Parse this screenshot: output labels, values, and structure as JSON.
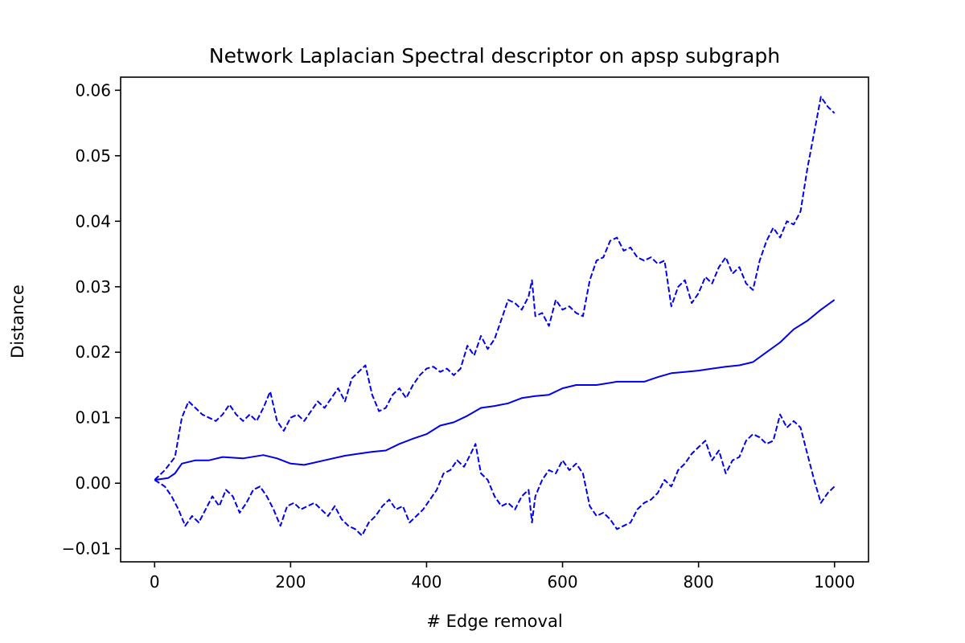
{
  "chart_data": {
    "type": "line",
    "title": "Network Laplacian Spectral descriptor on apsp subgraph",
    "xlabel": "# Edge removal",
    "ylabel": "Distance",
    "xlim": [
      -50,
      1050
    ],
    "ylim": [
      -0.012,
      0.062
    ],
    "xticks": [
      0,
      200,
      400,
      600,
      800,
      1000
    ],
    "xtick_labels": [
      "0",
      "200",
      "400",
      "600",
      "800",
      "1000"
    ],
    "yticks": [
      -0.01,
      0.0,
      0.01,
      0.02,
      0.03,
      0.04,
      0.05,
      0.06
    ],
    "ytick_labels": [
      "−0.01",
      "0.00",
      "0.01",
      "0.02",
      "0.03",
      "0.04",
      "0.05",
      "0.06"
    ],
    "grid": false,
    "legend": "none",
    "color": "#0000ee",
    "series": [
      {
        "style": "solid",
        "points": [
          [
            0,
            0.0005
          ],
          [
            20,
            0.0008
          ],
          [
            30,
            0.0015
          ],
          [
            40,
            0.003
          ],
          [
            60,
            0.0035
          ],
          [
            80,
            0.0035
          ],
          [
            100,
            0.004
          ],
          [
            130,
            0.0038
          ],
          [
            160,
            0.0043
          ],
          [
            180,
            0.0038
          ],
          [
            200,
            0.003
          ],
          [
            220,
            0.0028
          ],
          [
            250,
            0.0035
          ],
          [
            280,
            0.0042
          ],
          [
            300,
            0.0045
          ],
          [
            320,
            0.0048
          ],
          [
            340,
            0.005
          ],
          [
            360,
            0.006
          ],
          [
            380,
            0.0068
          ],
          [
            400,
            0.0075
          ],
          [
            420,
            0.0088
          ],
          [
            440,
            0.0093
          ],
          [
            460,
            0.0103
          ],
          [
            480,
            0.0115
          ],
          [
            500,
            0.0118
          ],
          [
            520,
            0.0122
          ],
          [
            540,
            0.013
          ],
          [
            560,
            0.0133
          ],
          [
            580,
            0.0135
          ],
          [
            600,
            0.0145
          ],
          [
            620,
            0.015
          ],
          [
            650,
            0.015
          ],
          [
            680,
            0.0155
          ],
          [
            700,
            0.0155
          ],
          [
            720,
            0.0155
          ],
          [
            740,
            0.0162
          ],
          [
            760,
            0.0168
          ],
          [
            780,
            0.017
          ],
          [
            800,
            0.0172
          ],
          [
            820,
            0.0175
          ],
          [
            840,
            0.0178
          ],
          [
            860,
            0.018
          ],
          [
            880,
            0.0185
          ],
          [
            900,
            0.02
          ],
          [
            920,
            0.0215
          ],
          [
            940,
            0.0235
          ],
          [
            960,
            0.0248
          ],
          [
            980,
            0.0265
          ],
          [
            1000,
            0.028
          ]
        ]
      },
      {
        "style": "dashed",
        "points": [
          [
            0,
            0.0005
          ],
          [
            15,
            0.002
          ],
          [
            30,
            0.004
          ],
          [
            40,
            0.01
          ],
          [
            50,
            0.0125
          ],
          [
            60,
            0.0115
          ],
          [
            70,
            0.0105
          ],
          [
            80,
            0.01
          ],
          [
            90,
            0.0095
          ],
          [
            100,
            0.0105
          ],
          [
            110,
            0.012
          ],
          [
            120,
            0.0105
          ],
          [
            130,
            0.0095
          ],
          [
            140,
            0.0105
          ],
          [
            150,
            0.0095
          ],
          [
            160,
            0.0115
          ],
          [
            170,
            0.014
          ],
          [
            180,
            0.0095
          ],
          [
            190,
            0.008
          ],
          [
            200,
            0.01
          ],
          [
            210,
            0.0105
          ],
          [
            220,
            0.0095
          ],
          [
            230,
            0.011
          ],
          [
            240,
            0.0125
          ],
          [
            250,
            0.0115
          ],
          [
            260,
            0.013
          ],
          [
            270,
            0.0145
          ],
          [
            280,
            0.0125
          ],
          [
            290,
            0.016
          ],
          [
            300,
            0.017
          ],
          [
            310,
            0.018
          ],
          [
            320,
            0.0135
          ],
          [
            330,
            0.011
          ],
          [
            340,
            0.0115
          ],
          [
            350,
            0.0135
          ],
          [
            360,
            0.0145
          ],
          [
            370,
            0.013
          ],
          [
            380,
            0.015
          ],
          [
            390,
            0.0165
          ],
          [
            400,
            0.0175
          ],
          [
            410,
            0.0178
          ],
          [
            420,
            0.017
          ],
          [
            430,
            0.0175
          ],
          [
            440,
            0.0165
          ],
          [
            450,
            0.0175
          ],
          [
            460,
            0.021
          ],
          [
            470,
            0.0195
          ],
          [
            480,
            0.0225
          ],
          [
            490,
            0.0205
          ],
          [
            500,
            0.022
          ],
          [
            510,
            0.025
          ],
          [
            520,
            0.028
          ],
          [
            530,
            0.0275
          ],
          [
            540,
            0.0265
          ],
          [
            550,
            0.0285
          ],
          [
            555,
            0.031
          ],
          [
            560,
            0.0255
          ],
          [
            570,
            0.026
          ],
          [
            580,
            0.024
          ],
          [
            590,
            0.028
          ],
          [
            600,
            0.0265
          ],
          [
            610,
            0.027
          ],
          [
            620,
            0.026
          ],
          [
            630,
            0.0255
          ],
          [
            640,
            0.031
          ],
          [
            650,
            0.034
          ],
          [
            660,
            0.0345
          ],
          [
            670,
            0.037
          ],
          [
            680,
            0.0375
          ],
          [
            690,
            0.0355
          ],
          [
            700,
            0.036
          ],
          [
            710,
            0.0345
          ],
          [
            720,
            0.034
          ],
          [
            730,
            0.0345
          ],
          [
            740,
            0.0335
          ],
          [
            750,
            0.034
          ],
          [
            760,
            0.027
          ],
          [
            770,
            0.03
          ],
          [
            780,
            0.031
          ],
          [
            790,
            0.0275
          ],
          [
            800,
            0.029
          ],
          [
            810,
            0.0315
          ],
          [
            820,
            0.0305
          ],
          [
            830,
            0.033
          ],
          [
            840,
            0.0345
          ],
          [
            850,
            0.032
          ],
          [
            860,
            0.033
          ],
          [
            870,
            0.0305
          ],
          [
            880,
            0.0295
          ],
          [
            890,
            0.034
          ],
          [
            900,
            0.037
          ],
          [
            910,
            0.039
          ],
          [
            920,
            0.0375
          ],
          [
            930,
            0.04
          ],
          [
            940,
            0.0395
          ],
          [
            950,
            0.0415
          ],
          [
            960,
            0.048
          ],
          [
            970,
            0.0535
          ],
          [
            980,
            0.059
          ],
          [
            990,
            0.0575
          ],
          [
            1000,
            0.0565
          ]
        ]
      },
      {
        "style": "dashed",
        "points": [
          [
            0,
            0.0005
          ],
          [
            15,
            -0.0005
          ],
          [
            25,
            -0.002
          ],
          [
            35,
            -0.004
          ],
          [
            45,
            -0.0065
          ],
          [
            55,
            -0.005
          ],
          [
            65,
            -0.006
          ],
          [
            75,
            -0.004
          ],
          [
            85,
            -0.002
          ],
          [
            95,
            -0.0035
          ],
          [
            105,
            -0.001
          ],
          [
            115,
            -0.002
          ],
          [
            125,
            -0.0045
          ],
          [
            135,
            -0.003
          ],
          [
            145,
            -0.001
          ],
          [
            155,
            -0.0005
          ],
          [
            165,
            -0.002
          ],
          [
            175,
            -0.004
          ],
          [
            185,
            -0.0065
          ],
          [
            195,
            -0.0035
          ],
          [
            205,
            -0.003
          ],
          [
            215,
            -0.004
          ],
          [
            225,
            -0.0035
          ],
          [
            235,
            -0.003
          ],
          [
            245,
            -0.004
          ],
          [
            255,
            -0.005
          ],
          [
            265,
            -0.0035
          ],
          [
            275,
            -0.0055
          ],
          [
            285,
            -0.0065
          ],
          [
            295,
            -0.007
          ],
          [
            305,
            -0.008
          ],
          [
            315,
            -0.006
          ],
          [
            325,
            -0.005
          ],
          [
            335,
            -0.0035
          ],
          [
            345,
            -0.0025
          ],
          [
            355,
            -0.004
          ],
          [
            365,
            -0.0035
          ],
          [
            375,
            -0.006
          ],
          [
            385,
            -0.005
          ],
          [
            395,
            -0.004
          ],
          [
            405,
            -0.0025
          ],
          [
            415,
            -0.001
          ],
          [
            425,
            0.0015
          ],
          [
            435,
            0.002
          ],
          [
            445,
            0.0035
          ],
          [
            455,
            0.0025
          ],
          [
            465,
            0.0045
          ],
          [
            472,
            0.006
          ],
          [
            480,
            0.0015
          ],
          [
            490,
            0.0005
          ],
          [
            500,
            -0.002
          ],
          [
            510,
            -0.0035
          ],
          [
            520,
            -0.003
          ],
          [
            530,
            -0.004
          ],
          [
            540,
            -0.002
          ],
          [
            550,
            -0.001
          ],
          [
            555,
            -0.006
          ],
          [
            560,
            -0.002
          ],
          [
            570,
            0.0005
          ],
          [
            580,
            0.002
          ],
          [
            590,
            0.0015
          ],
          [
            600,
            0.0035
          ],
          [
            610,
            0.002
          ],
          [
            620,
            0.003
          ],
          [
            630,
            0.0015
          ],
          [
            640,
            -0.0035
          ],
          [
            650,
            -0.005
          ],
          [
            660,
            -0.0045
          ],
          [
            670,
            -0.0055
          ],
          [
            680,
            -0.007
          ],
          [
            690,
            -0.0065
          ],
          [
            700,
            -0.006
          ],
          [
            710,
            -0.004
          ],
          [
            720,
            -0.003
          ],
          [
            730,
            -0.0025
          ],
          [
            740,
            -0.0015
          ],
          [
            750,
            0.0005
          ],
          [
            760,
            -0.0005
          ],
          [
            770,
            0.002
          ],
          [
            780,
            0.003
          ],
          [
            790,
            0.0045
          ],
          [
            800,
            0.0055
          ],
          [
            810,
            0.0065
          ],
          [
            820,
            0.0035
          ],
          [
            830,
            0.005
          ],
          [
            840,
            0.0015
          ],
          [
            850,
            0.0035
          ],
          [
            860,
            0.004
          ],
          [
            870,
            0.0065
          ],
          [
            880,
            0.0075
          ],
          [
            890,
            0.007
          ],
          [
            900,
            0.006
          ],
          [
            910,
            0.0065
          ],
          [
            920,
            0.0105
          ],
          [
            930,
            0.0085
          ],
          [
            940,
            0.0095
          ],
          [
            950,
            0.0085
          ],
          [
            960,
            0.0045
          ],
          [
            970,
            0.0005
          ],
          [
            980,
            -0.003
          ],
          [
            990,
            -0.0015
          ],
          [
            1000,
            -0.0005
          ]
        ]
      }
    ]
  }
}
